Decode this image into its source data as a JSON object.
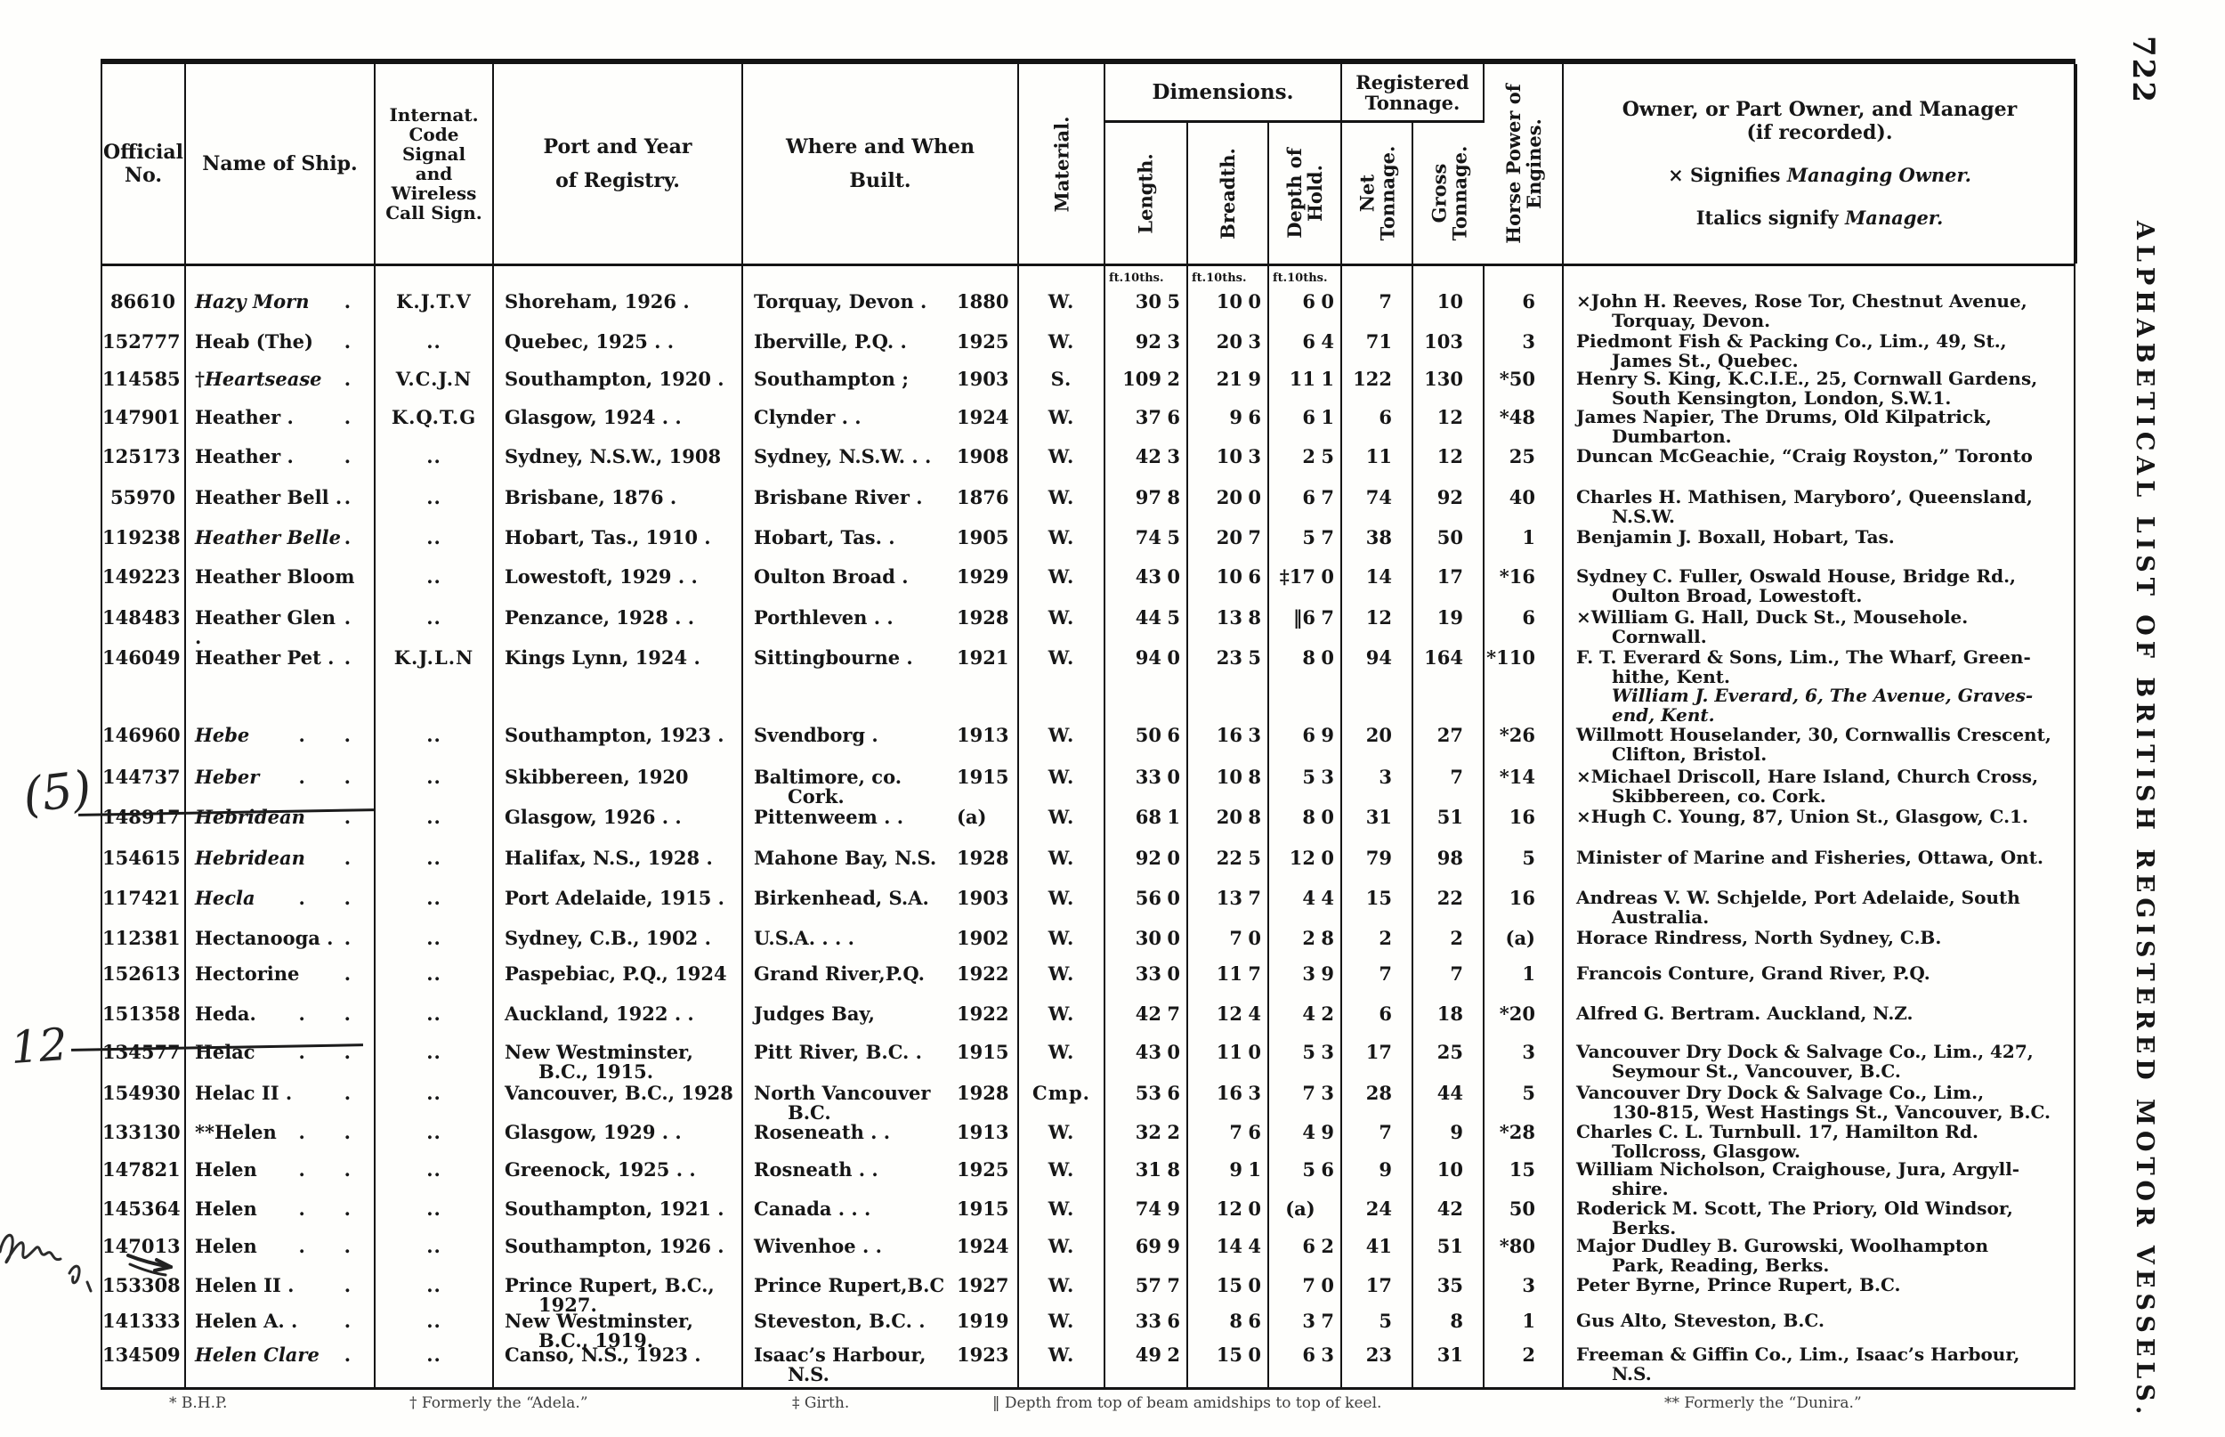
{
  "page": {
    "number": "722",
    "side_title": "ALPHABETICAL LIST OF BRITISH REGISTERED MOTOR VESSELS.",
    "footnotes": {
      "f1": "* B.H.P.",
      "f2": "† Formerly the “Adela.”",
      "f3": "‡ Girth.",
      "f4": "‖ Depth from top of beam amidships to top of keel.",
      "f5": "** Formerly the “Dunira.”"
    },
    "annotations": {
      "note_a": "(5)",
      "note_b": "12"
    }
  },
  "header": {
    "off_l1": "Official",
    "off_l2": "No.",
    "name": "Name of Ship.",
    "code_lines": [
      "Internat.",
      "Code",
      "Signal",
      "and",
      "Wireless",
      "Call Sign."
    ],
    "port_l1": "Port and Year",
    "port_l2": "of Registry.",
    "built_l1": "Where and When",
    "built_l2": "Built.",
    "material": "Material.",
    "dimensions": "Dimensions.",
    "length": "Length.",
    "breadth": "Breadth.",
    "depth_l1": "Depth of",
    "depth_l2": "Hold.",
    "reg_l1": "Registered",
    "reg_l2": "Tonnage.",
    "net_l1": "Net",
    "net_l2": "Tonnage.",
    "gross_l1": "Gross",
    "gross_l2": "Tonnage.",
    "hp_l1": "Horse Power of",
    "hp_l2": "Engines.",
    "owner_l1": "Owner, or Part Owner, and Manager",
    "owner_l2": "(if recorded).",
    "owner_sig_prefix": "× Signifies ",
    "owner_sig_italic": "Managing Owner.",
    "owner_it_prefix": "Italics signify ",
    "owner_it_italic": "Manager.",
    "ft_label": "ft.10ths."
  },
  "rows": [
    {
      "h": 45,
      "no": "86610",
      "name": "Hazy Morn",
      "it": 1,
      "dots": ".",
      "code": "K.J.T.V",
      "port": [
        "Shoreham, 1926   ."
      ],
      "built": [
        "Torquay, Devon ."
      ],
      "year": "1880",
      "mat": "W.",
      "lf": "30",
      "li": "5",
      "bf": "10",
      "bi": "0",
      "df": "6",
      "di": "0",
      "net": "7",
      "gr": "10",
      "hp": "6",
      "owner": [
        {
          "t": "×John H. Reeves, Rose Tor, Chestnut Avenue,"
        },
        {
          "t": "Torquay, Devon.",
          "c": 1
        }
      ]
    },
    {
      "h": 42,
      "no": "152777",
      "name": "Heab (The)",
      "dots": ".",
      "code": "..",
      "port": [
        "Quebec, 1925   .    ."
      ],
      "built": [
        "Iberville, P.Q.   ."
      ],
      "year": "1925",
      "mat": "W.",
      "lf": "92",
      "li": "3",
      "bf": "20",
      "bi": "3",
      "df": "6",
      "di": "4",
      "net": "71",
      "gr": "103",
      "hp": "3",
      "owner": [
        {
          "t": "Piedmont Fish & Packing Co., Lim., 49, St.,"
        },
        {
          "t": "James St., Quebec.",
          "c": 1
        }
      ]
    },
    {
      "h": 43,
      "no": "114585",
      "pre": "†",
      "name": "Heartsease",
      "it": 1,
      "dots": ".",
      "code": "V.C.J.N",
      "port": [
        "Southampton, 1920 ."
      ],
      "built": [
        "Southampton     ;"
      ],
      "year": "1903",
      "mat": "S.",
      "lf": "109",
      "li": "2",
      "bf": "21",
      "bi": "9",
      "df": "11",
      "di": "1",
      "net": "122",
      "gr": "130",
      "hp": "*50",
      "owner": [
        {
          "t": "Henry S. King, K.C.I.E., 25, Cornwall Gardens,"
        },
        {
          "t": "South Kensington, London, S.W.1.",
          "c": 1
        }
      ]
    },
    {
      "h": 44,
      "no": "147901",
      "name": "Heather .",
      "dots": ".",
      "code": "K.Q.T.G",
      "port": [
        "Glasgow, 1924   .    ."
      ],
      "built": [
        "Clynder      .     ."
      ],
      "year": "1924",
      "mat": "W.",
      "lf": "37",
      "li": "6",
      "bf": "9",
      "bi": "6",
      "df": "6",
      "di": "1",
      "net": "6",
      "gr": "12",
      "hp": "*48",
      "owner": [
        {
          "t": "James Napier, The Drums, Old Kilpatrick,"
        },
        {
          "t": "Dumbarton.",
          "c": 1
        }
      ]
    },
    {
      "h": 46,
      "no": "125173",
      "name": "Heather .",
      "dots": ".",
      "code": "..",
      "port": [
        "Sydney, N.S.W., 1908"
      ],
      "built": [
        "Sydney, N.S.W. .   ."
      ],
      "year": "1908",
      "mat": "W.",
      "lf": "42",
      "li": "3",
      "bf": "10",
      "bi": "3",
      "df": "2",
      "di": "5",
      "net": "11",
      "gr": "12",
      "hp": "25",
      "owner": [
        {
          "t": "Duncan McGeachie, “Craig Royston,” Toronto"
        }
      ]
    },
    {
      "h": 45,
      "no": "55970",
      "name": "Heather Bell .",
      "dots": ".",
      "code": "..",
      "port": [
        "Brisbane, 1876   ."
      ],
      "built": [
        "Brisbane River   ."
      ],
      "year": "1876",
      "mat": "W.",
      "lf": "97",
      "li": "8",
      "bf": "20",
      "bi": "0",
      "df": "6",
      "di": "7",
      "net": "74",
      "gr": "92",
      "hp": "40",
      "owner": [
        {
          "t": "Charles H. Mathisen, Maryboro’, Queensland,"
        },
        {
          "t": "N.S.W.",
          "c": 1
        }
      ]
    },
    {
      "h": 44,
      "no": "119238",
      "name": "Heather Belle",
      "it": 1,
      "dots": ".",
      "code": "..",
      "port": [
        "Hobart, Tas., 1910   ."
      ],
      "built": [
        "Hobart, Tas.     ."
      ],
      "year": "1905",
      "mat": "W.",
      "lf": "74",
      "li": "5",
      "bf": "20",
      "bi": "7",
      "df": "5",
      "di": "7",
      "net": "38",
      "gr": "50",
      "hp": "1",
      "owner": [
        {
          "t": "Benjamin J. Boxall, Hobart, Tas."
        }
      ]
    },
    {
      "h": 46,
      "no": "149223",
      "name": "Heather Bloom",
      "dots": "",
      "code": "..",
      "port": [
        "Lowestoft, 1929 .    ."
      ],
      "built": [
        "Oulton Broad     ."
      ],
      "year": "1929",
      "mat": "W.",
      "lf": "43",
      "li": "0",
      "bf": "10",
      "bi": "6",
      "df": "‡17",
      "di": "0",
      "net": "14",
      "gr": "17",
      "hp": "*16",
      "owner": [
        {
          "t": "Sydney C. Fuller, Oswald House, Bridge Rd.,"
        },
        {
          "t": "Oulton Broad, Lowestoft.",
          "c": 1
        }
      ]
    },
    {
      "h": 45,
      "no": "148483",
      "name": "Heather Glen .",
      "dots": ".",
      "code": "..",
      "port": [
        "Penzance, 1928 .    ."
      ],
      "built": [
        "Porthleven   .    ."
      ],
      "year": "1928",
      "mat": "W.",
      "lf": "44",
      "li": "5",
      "bf": "13",
      "bi": "8",
      "df": "‖6",
      "di": "7",
      "net": "12",
      "gr": "19",
      "hp": "6",
      "owner": [
        {
          "t": "×William G. Hall, Duck St., Mousehole."
        },
        {
          "t": "Cornwall.",
          "c": 1
        }
      ]
    },
    {
      "h": 87,
      "no": "146049",
      "name": "Heather Pet .",
      "dots": ".",
      "code": "K.J.L.N",
      "port": [
        "Kings Lynn, 1924   ."
      ],
      "built": [
        "Sittingbourne    ."
      ],
      "year": "1921",
      "mat": "W.",
      "lf": "94",
      "li": "0",
      "bf": "23",
      "bi": "5",
      "df": "8",
      "di": "0",
      "net": "94",
      "gr": "164",
      "hp": "*110",
      "owner": [
        {
          "t": "F. T. Everard & Sons, Lim., The Wharf, Green-"
        },
        {
          "t": "hithe, Kent.",
          "c": 1
        },
        {
          "t": "William J. Everard, 6, The Avenue, Graves-",
          "c": 1,
          "i": 1
        },
        {
          "t": "end, Kent.",
          "c": 1,
          "i": 1
        }
      ]
    },
    {
      "h": 47,
      "no": "146960",
      "name": "Hebe",
      "it": 1,
      "dots": ".      .",
      "code": "..",
      "port": [
        "Southampton, 1923   ."
      ],
      "built": [
        "Svendborg       ."
      ],
      "year": "1913",
      "mat": "W.",
      "lf": "50",
      "li": "6",
      "bf": "16",
      "bi": "3",
      "df": "6",
      "di": "9",
      "net": "20",
      "gr": "27",
      "hp": "*26",
      "owner": [
        {
          "t": "Willmott Houselander, 30, Cornwallis Crescent,"
        },
        {
          "t": "Clifton, Bristol.",
          "c": 1
        }
      ]
    },
    {
      "h": 45,
      "no": "144737",
      "name": "Heber",
      "it": 1,
      "dots": ".      .",
      "code": "..",
      "port": [
        "Skibbereen, 1920"
      ],
      "built": [
        "Baltimore, co.",
        "Cork."
      ],
      "year": "1915",
      "mat": "W.",
      "lf": "33",
      "li": "0",
      "bf": "10",
      "bi": "8",
      "df": "5",
      "di": "3",
      "net": "3",
      "gr": "7",
      "hp": "*14",
      "owner": [
        {
          "t": "×Michael Driscoll, Hare Island, Church Cross,"
        },
        {
          "t": "Skibbereen, co. Cork.",
          "c": 1
        }
      ]
    },
    {
      "h": 46,
      "no": "148917",
      "struck": 1,
      "name": "Hebridean",
      "it": 1,
      "dots": ".",
      "code": "..",
      "port": [
        "Glasgow, 1926   .    ."
      ],
      "built": [
        "Pittenweem .    ."
      ],
      "year": "(a)",
      "mat": "W.",
      "lf": "68",
      "li": "1",
      "bf": "20",
      "bi": "8",
      "df": "8",
      "di": "0",
      "net": "31",
      "gr": "51",
      "hp": "16",
      "owner": [
        {
          "t": "×Hugh C. Young, 87, Union St., Glasgow, C.1."
        }
      ]
    },
    {
      "h": 45,
      "no": "154615",
      "name": "Hebridean",
      "it": 1,
      "dots": ".",
      "code": "..",
      "port": [
        "Halifax, N.S., 1928  ."
      ],
      "built": [
        "Mahone Bay, N.S."
      ],
      "year": "1928",
      "mat": "W.",
      "lf": "92",
      "li": "0",
      "bf": "22",
      "bi": "5",
      "df": "12",
      "di": "0",
      "net": "79",
      "gr": "98",
      "hp": "5",
      "owner": [
        {
          "t": "Minister of Marine and Fisheries, Ottawa, Ont."
        }
      ]
    },
    {
      "h": 45,
      "no": "117421",
      "name": "Hecla",
      "it": 1,
      "dots": ".      .",
      "code": "..",
      "port": [
        "Port Adelaide, 1915 ."
      ],
      "built": [
        "Birkenhead, S.A."
      ],
      "year": "1903",
      "mat": "W.",
      "lf": "56",
      "li": "0",
      "bf": "13",
      "bi": "7",
      "df": "4",
      "di": "4",
      "net": "15",
      "gr": "22",
      "hp": "16",
      "owner": [
        {
          "t": "Andreas V. W. Schjelde, Port Adelaide, South"
        },
        {
          "t": "Australia.",
          "c": 1
        }
      ]
    },
    {
      "h": 40,
      "no": "112381",
      "name": "Hectanooga .",
      "dots": ".",
      "code": "..",
      "port": [
        "Sydney, C.B., 1902   ."
      ],
      "built": [
        "U.S.A.   .     .     ."
      ],
      "year": "1902",
      "mat": "W.",
      "lf": "30",
      "li": "0",
      "bf": "7",
      "bi": "0",
      "df": "2",
      "di": "8",
      "net": "2",
      "gr": "2",
      "hp": "(a)",
      "owner": [
        {
          "t": "Horace Rindress, North Sydney, C.B."
        }
      ]
    },
    {
      "h": 45,
      "no": "152613",
      "name": "Hectorine",
      "dots": ".",
      "code": "..",
      "port": [
        "Paspebiac, P.Q., 1924"
      ],
      "built": [
        "Grand River,P.Q."
      ],
      "year": "1922",
      "mat": "W.",
      "lf": "33",
      "li": "0",
      "bf": "11",
      "bi": "7",
      "df": "3",
      "di": "9",
      "net": "7",
      "gr": "7",
      "hp": "1",
      "owner": [
        {
          "t": "Francois Conture, Grand River, P.Q."
        }
      ]
    },
    {
      "h": 43,
      "no": "151358",
      "name": "Heda.",
      "dots": ".      .",
      "code": "..",
      "port": [
        "Auckland, 1922 .    ."
      ],
      "built": [
        "Judges Bay,"
      ],
      "year": "1922",
      "mat": "W.",
      "lf": "42",
      "li": "7",
      "bf": "12",
      "bi": "4",
      "df": "4",
      "di": "2",
      "net": "6",
      "gr": "18",
      "hp": "*20",
      "owner": [
        {
          "t": "Alfred G. Bertram. Auckland, N.Z."
        }
      ]
    },
    {
      "h": 46,
      "no": "134577",
      "struck": 1,
      "name": "Helac",
      "dots": ".      .",
      "code": "..",
      "port": [
        "New Westminster,",
        "B.C., 1915."
      ],
      "built": [
        "Pitt River, B.C. ."
      ],
      "year": "1915",
      "mat": "W.",
      "lf": "43",
      "li": "0",
      "bf": "11",
      "bi": "0",
      "df": "5",
      "di": "3",
      "net": "17",
      "gr": "25",
      "hp": "3",
      "owner": [
        {
          "t": "Vancouver Dry Dock & Salvage Co., Lim., 427,"
        },
        {
          "t": "Seymour St., Vancouver, B.C.",
          "c": 1
        }
      ]
    },
    {
      "h": 44,
      "no": "154930",
      "name": "Helac II .",
      "dots": ".",
      "code": "..",
      "port": [
        "Vancouver, B.C., 1928"
      ],
      "built": [
        "North Vancouver",
        "B.C."
      ],
      "year": "1928",
      "mat": "Cmp.",
      "lf": "53",
      "li": "6",
      "bf": "16",
      "bi": "3",
      "df": "7",
      "di": "3",
      "net": "28",
      "gr": "44",
      "hp": "5",
      "owner": [
        {
          "t": "Vancouver Dry Dock & Salvage Co., Lim.,"
        },
        {
          "t": "130-815, West Hastings St., Vancouver, B.C.",
          "c": 1
        }
      ]
    },
    {
      "h": 42,
      "no": "133130",
      "pre": "**",
      "name": "Helen",
      "dots": ".      .",
      "code": "..",
      "port": [
        "Glasgow, 1929   .    ."
      ],
      "built": [
        "Roseneath   .    ."
      ],
      "year": "1913",
      "mat": "W.",
      "lf": "32",
      "li": "2",
      "bf": "7",
      "bi": "6",
      "df": "4",
      "di": "9",
      "net": "7",
      "gr": "9",
      "hp": "*28",
      "owner": [
        {
          "t": "Charles C. L. Turnbull. 17, Hamilton Rd."
        },
        {
          "t": "Tollcross, Glasgow.",
          "c": 1
        }
      ]
    },
    {
      "h": 44,
      "no": "147821",
      "name": "Helen",
      "dots": ".      .",
      "code": "..",
      "port": [
        "Greenock, 1925 .    ."
      ],
      "built": [
        "Rosneath   .    ."
      ],
      "year": "1925",
      "mat": "W.",
      "lf": "31",
      "li": "8",
      "bf": "9",
      "bi": "1",
      "df": "5",
      "di": "6",
      "net": "9",
      "gr": "10",
      "hp": "15",
      "owner": [
        {
          "t": "William Nicholson, Craighouse, Jura, Argyll-"
        },
        {
          "t": "shire.",
          "c": 1
        }
      ]
    },
    {
      "h": 42,
      "no": "145364",
      "name": "Helen",
      "dots": ".      .",
      "code": "..",
      "port": [
        "Southampton, 1921 ."
      ],
      "built": [
        "Canada .    .    ."
      ],
      "year": "1915",
      "mat": "W.",
      "lf": "74",
      "li": "9",
      "bf": "12",
      "bi": "0",
      "df": "(a)",
      "di": "",
      "net": "24",
      "gr": "42",
      "hp": "50",
      "owner": [
        {
          "t": "Roderick M. Scott, The Priory, Old Windsor,"
        },
        {
          "t": "Berks.",
          "c": 1
        }
      ]
    },
    {
      "h": 44,
      "no": "147013",
      "name": "Helen",
      "dots": ".      .",
      "code": "..",
      "port": [
        "Southampton, 1926   ."
      ],
      "built": [
        "Wivenhoe   .    ."
      ],
      "year": "1924",
      "mat": "W.",
      "lf": "69",
      "li": "9",
      "bf": "14",
      "bi": "4",
      "df": "6",
      "di": "2",
      "net": "41",
      "gr": "51",
      "hp": "*80",
      "owner": [
        {
          "t": "Major Dudley B. Gurowski, Woolhampton"
        },
        {
          "t": "Park, Reading, Berks.",
          "c": 1
        }
      ]
    },
    {
      "h": 40,
      "no": "153308",
      "name": "Helen II .",
      "dots": ".",
      "code": "..",
      "port": [
        "Prince Rupert, B.C.,",
        "1927."
      ],
      "built": [
        "Prince Rupert,B.C"
      ],
      "year": "1927",
      "mat": "W.",
      "lf": "57",
      "li": "7",
      "bf": "15",
      "bi": "0",
      "df": "7",
      "di": "0",
      "net": "17",
      "gr": "35",
      "hp": "3",
      "owner": [
        {
          "t": "Peter Byrne, Prince Rupert, B.C."
        }
      ]
    },
    {
      "h": 38,
      "no": "141333",
      "name": "Helen A. .",
      "dots": ".",
      "code": "..",
      "port": [
        "New Westminster,",
        "B.C., 1919."
      ],
      "built": [
        "Steveston, B.C.  ."
      ],
      "year": "1919",
      "mat": "W.",
      "lf": "33",
      "li": "6",
      "bf": "8",
      "bi": "6",
      "df": "3",
      "di": "7",
      "net": "5",
      "gr": "8",
      "hp": "1",
      "owner": [
        {
          "t": "Gus Alto, Steveston, B.C."
        }
      ]
    },
    {
      "h": 50,
      "no": "134509",
      "name": "Helen Clare",
      "it": 1,
      "dots": ".",
      "code": "..",
      "port": [
        "Canso, N.S., 1923    ."
      ],
      "built": [
        "Isaac’s Harbour,",
        "N.S."
      ],
      "year": "1923",
      "mat": "W.",
      "lf": "49",
      "li": "2",
      "bf": "15",
      "bi": "0",
      "df": "6",
      "di": "3",
      "net": "23",
      "gr": "31",
      "hp": "2",
      "owner": [
        {
          "t": "Freeman & Giffin Co., Lim., Isaac’s Harbour,"
        },
        {
          "t": "N.S.",
          "c": 1
        }
      ]
    }
  ]
}
